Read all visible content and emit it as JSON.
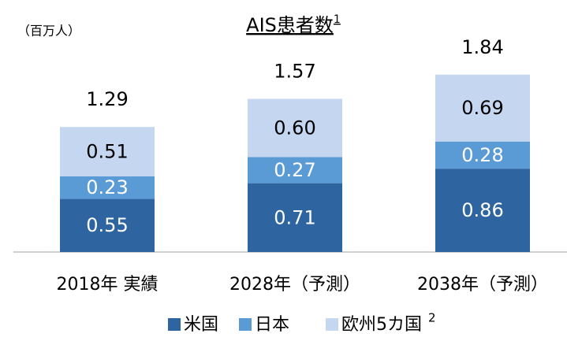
{
  "chart_data": {
    "type": "stacked_bar",
    "title": "AIS患者数",
    "title_note": "1",
    "unit_label": "（百万人）",
    "categories": [
      "2018年 実績",
      "2028年（予測）",
      "2038年（予測）"
    ],
    "series": [
      {
        "name": "米国",
        "color": "#2e64a0",
        "label_color": "#ffffff",
        "values": [
          0.55,
          0.71,
          0.86
        ],
        "value_labels": [
          "0.55",
          "0.71",
          "0.86"
        ]
      },
      {
        "name": "日本",
        "color": "#5b9bd5",
        "label_color": "#ffffff",
        "values": [
          0.23,
          0.27,
          0.28
        ],
        "value_labels": [
          "0.23",
          "0.27",
          "0.28"
        ]
      },
      {
        "name": "欧州5カ国",
        "color": "#c5d6f0",
        "label_color": "#000000",
        "values": [
          0.51,
          0.6,
          0.69
        ],
        "value_labels": [
          "0.51",
          "0.60",
          "0.69"
        ],
        "note": "2"
      }
    ],
    "totals": [
      1.29,
      1.57,
      1.84
    ],
    "ylim": [
      0,
      2.6
    ]
  }
}
